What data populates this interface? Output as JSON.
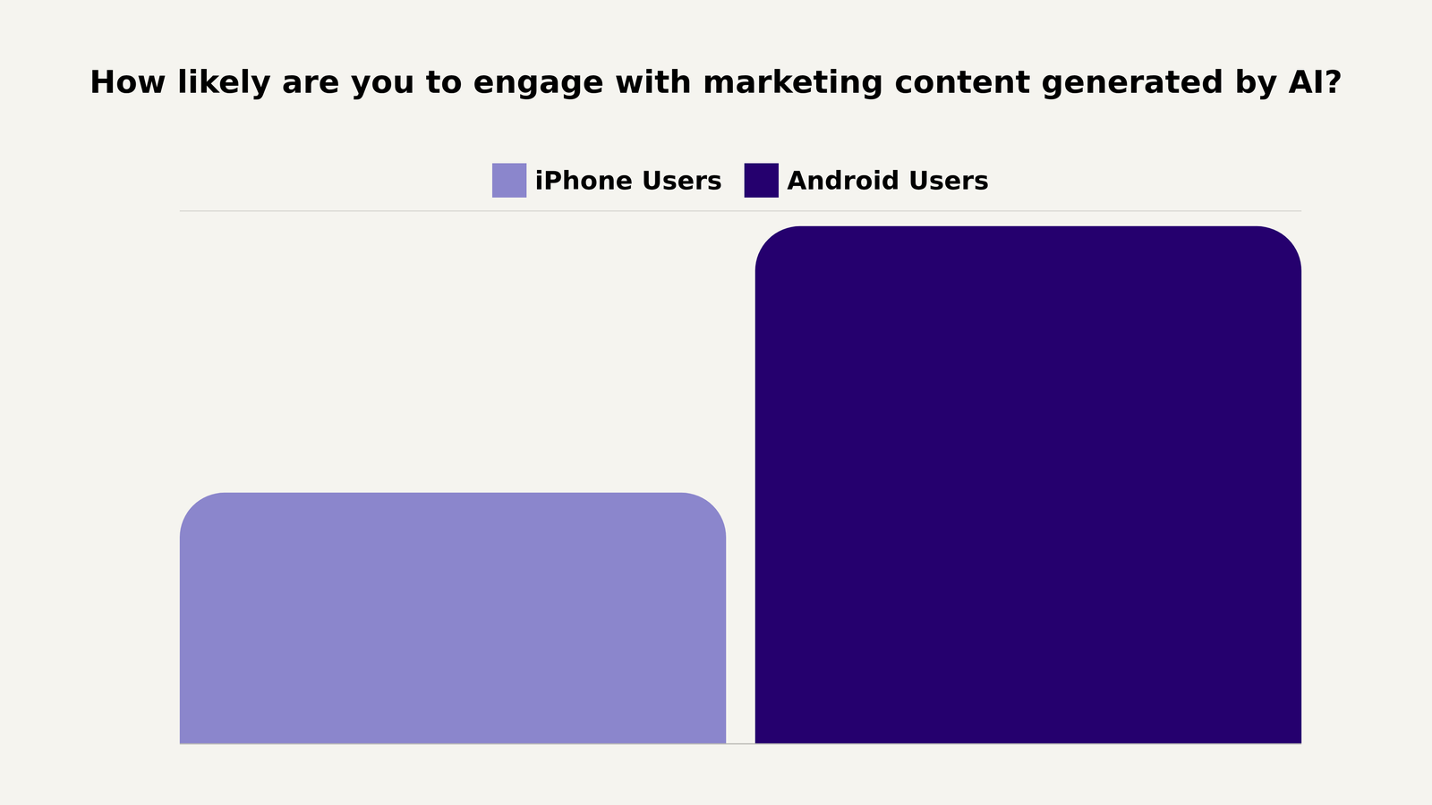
{
  "chart_data": {
    "type": "bar",
    "title": "How likely are you to engage with marketing content generated by AI?",
    "categories": [
      null
    ],
    "series": [
      {
        "name": "iPhone Users",
        "color": "#8b86cc",
        "values": [
          33
        ]
      },
      {
        "name": "Android Users",
        "color": "#25006e",
        "values": [
          68
        ]
      }
    ],
    "ylim": [
      0,
      70
    ],
    "yticks": [
      0,
      10,
      20,
      30,
      40,
      50,
      60,
      70
    ],
    "grid": true,
    "legend": "top",
    "tick_labels": false
  }
}
